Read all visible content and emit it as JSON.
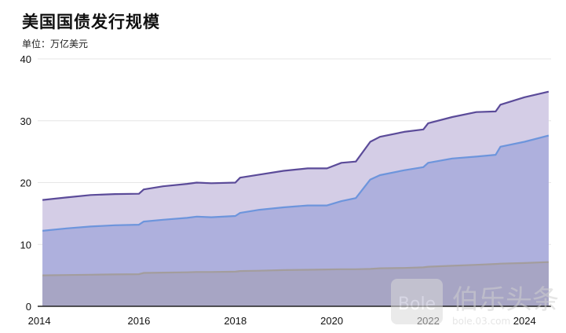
{
  "title": "美国国债发行规模",
  "subtitle": "单位：万亿美元",
  "watermark": {
    "latin": "Bole",
    "cjk": "伯乐头条",
    "url": "bole.03.com"
  },
  "colors": {
    "total_fill": "#d4cde6",
    "total_line": "#5b4b99",
    "public_fill": "#aeb0dd",
    "public_line": "#6d95dc",
    "intragov_fill": "#a7a5c4",
    "intragov_line": "#a39d9d",
    "grid": "#e6e6e6",
    "axis": "#222222"
  },
  "chart_data": {
    "type": "area",
    "title": "美国国债发行规模",
    "ylabel": "单位：万亿美元",
    "xlim": [
      2013.9,
      2024.55
    ],
    "ylim": [
      0,
      40
    ],
    "yticks": [
      0,
      10,
      20,
      30,
      40
    ],
    "xticks": [
      2014,
      2016,
      2018,
      2020,
      2022,
      2024
    ],
    "grid": true,
    "x": [
      2014.0,
      2014.5,
      2015.0,
      2015.5,
      2016.0,
      2016.1,
      2016.5,
      2017.0,
      2017.2,
      2017.5,
      2018.0,
      2018.1,
      2018.5,
      2019.0,
      2019.5,
      2019.9,
      2020.2,
      2020.5,
      2020.8,
      2021.0,
      2021.5,
      2021.9,
      2022.0,
      2022.5,
      2023.0,
      2023.4,
      2023.5,
      2024.0,
      2024.5
    ],
    "series": [
      {
        "values": [
          17.2,
          17.6,
          18.0,
          18.15,
          18.2,
          18.9,
          19.4,
          19.8,
          20.0,
          19.9,
          20.0,
          20.8,
          21.3,
          21.9,
          22.3,
          22.3,
          23.2,
          23.4,
          26.6,
          27.4,
          28.2,
          28.6,
          29.6,
          30.6,
          31.4,
          31.5,
          32.6,
          33.8,
          34.7
        ]
      },
      {
        "values": [
          12.2,
          12.6,
          12.9,
          13.1,
          13.2,
          13.7,
          14.0,
          14.3,
          14.5,
          14.4,
          14.6,
          15.1,
          15.6,
          16.0,
          16.3,
          16.3,
          17.0,
          17.5,
          20.5,
          21.2,
          22.0,
          22.5,
          23.2,
          23.9,
          24.2,
          24.5,
          25.8,
          26.6,
          27.6
        ]
      },
      {
        "values": [
          5.0,
          5.05,
          5.1,
          5.15,
          5.2,
          5.4,
          5.45,
          5.5,
          5.55,
          5.55,
          5.6,
          5.7,
          5.75,
          5.85,
          5.9,
          5.95,
          6.0,
          6.0,
          6.05,
          6.15,
          6.2,
          6.3,
          6.4,
          6.55,
          6.7,
          6.85,
          6.9,
          7.0,
          7.15
        ]
      }
    ]
  }
}
